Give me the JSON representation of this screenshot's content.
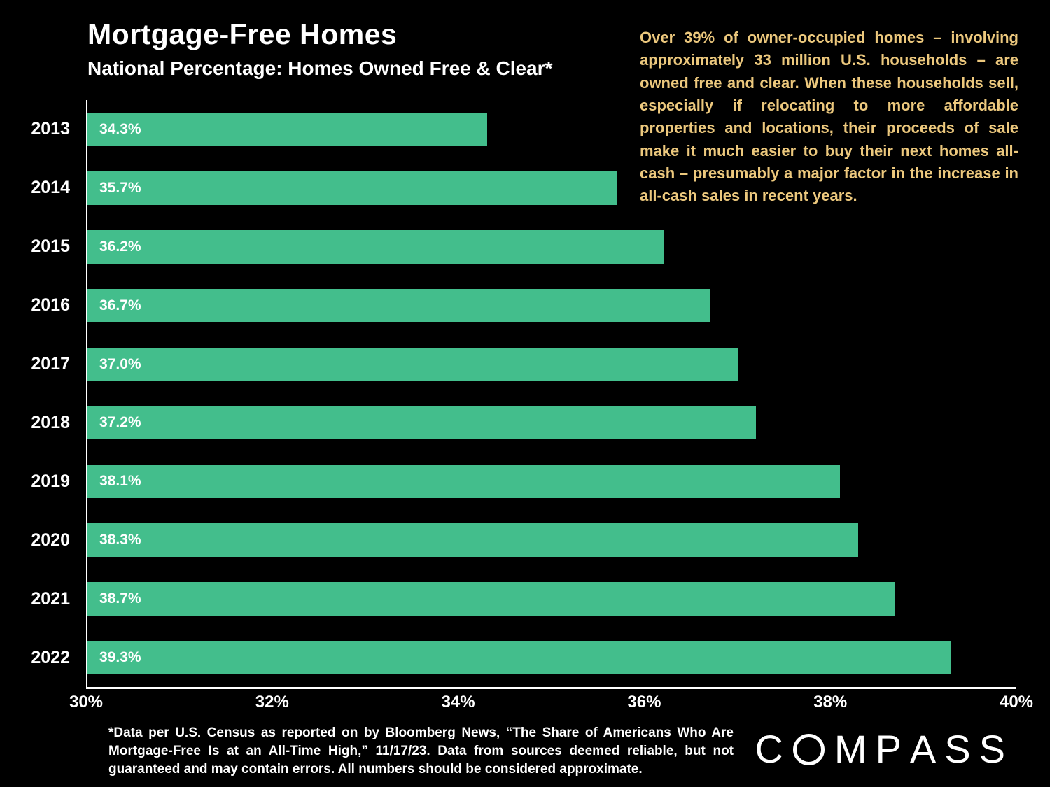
{
  "title": "Mortgage-Free Homes",
  "subtitle": "National Percentage: Homes Owned Free & Clear*",
  "commentary": "Over 39% of owner-occupied homes – involving approximately 33 million U.S. households – are owned free and clear. When these households sell, especially if relocating to more affordable properties and locations, their proceeds of sale make it much easier to buy their next homes all-cash – presumably a major factor in the increase in all-cash sales in recent years.",
  "footnote": "*Data per U.S. Census as reported on by Bloomberg News, “The Share of Americans Who Are Mortgage-Free Is at an All-Time High,” 11/17/23. Data from sources deemed reliable, but not guaranteed and may contain errors. All numbers should be considered approximate.",
  "logo_text": "COMPASS",
  "colors": {
    "background": "#000000",
    "bar": "#43be8c",
    "accent_text": "#ecc87d",
    "text": "#ffffff"
  },
  "chart_data": {
    "type": "bar",
    "orientation": "horizontal",
    "title": "Mortgage-Free Homes",
    "subtitle": "National Percentage: Homes Owned Free & Clear*",
    "categories": [
      "2013",
      "2014",
      "2015",
      "2016",
      "2017",
      "2018",
      "2019",
      "2020",
      "2021",
      "2022"
    ],
    "values": [
      34.3,
      35.7,
      36.2,
      36.7,
      37.0,
      37.2,
      38.1,
      38.3,
      38.7,
      39.3
    ],
    "value_labels": [
      "34.3%",
      "35.7%",
      "36.2%",
      "36.7%",
      "37.0%",
      "37.2%",
      "38.1%",
      "38.3%",
      "38.7%",
      "39.3%"
    ],
    "xlim": [
      30,
      40
    ],
    "x_ticks": [
      "30%",
      "32%",
      "34%",
      "36%",
      "38%",
      "40%"
    ],
    "x_tick_values": [
      30,
      32,
      34,
      36,
      38,
      40
    ],
    "bar_color": "#43be8c",
    "grid": false,
    "legend": "none"
  }
}
